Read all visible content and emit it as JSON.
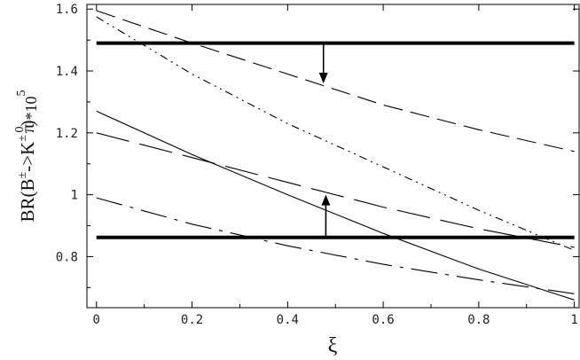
{
  "chart_data": {
    "type": "line",
    "xlabel": "ξ",
    "ylabel": {
      "base": "BR(B",
      "pm1": "±",
      "arrow": "->K",
      "pm2": "±",
      "pi": "π",
      "zero": "0",
      "tail": ")",
      "times": "*10",
      "exp": "5"
    },
    "xlim": [
      -0.02,
      1.01
    ],
    "ylim": [
      0.635,
      1.615
    ],
    "xticks": [
      0,
      0.2,
      0.4,
      0.6,
      0.8,
      1
    ],
    "xtick_labels": [
      "0",
      "0.2",
      "0.4",
      "0.6",
      "0.8",
      "1"
    ],
    "yticks": [
      0.8,
      1.0,
      1.2,
      1.4,
      1.6
    ],
    "ytick_labels": [
      "0.8",
      "1",
      "1.2",
      "1.4",
      "1.6"
    ],
    "grid": false,
    "bounds": [
      {
        "value": 1.49,
        "arrow": {
          "x": 0.475,
          "from": 1.49,
          "to": 1.36
        }
      },
      {
        "value": 0.862,
        "arrow": {
          "x": 0.48,
          "from": 0.862,
          "to": 1.0
        }
      }
    ],
    "series": [
      {
        "style": "solid",
        "x": [
          0,
          0.2,
          0.4,
          0.6,
          0.8,
          1.0
        ],
        "y": [
          1.27,
          1.13,
          1.0,
          0.875,
          0.76,
          0.66
        ]
      },
      {
        "style": "dash-medium",
        "x": [
          0,
          0.2,
          0.4,
          0.6,
          0.8,
          1.0
        ],
        "y": [
          1.595,
          1.49,
          1.39,
          1.29,
          1.21,
          1.14
        ]
      },
      {
        "style": "dash-dot-dot",
        "x": [
          0,
          0.2,
          0.4,
          0.6,
          0.8,
          1.0
        ],
        "y": [
          1.575,
          1.39,
          1.23,
          1.09,
          0.95,
          0.82
        ]
      },
      {
        "style": "dash-long",
        "x": [
          0,
          0.2,
          0.4,
          0.6,
          0.8,
          1.0
        ],
        "y": [
          1.2,
          1.12,
          1.04,
          0.96,
          0.89,
          0.83
        ]
      },
      {
        "style": "dash-dot",
        "x": [
          0,
          0.2,
          0.4,
          0.6,
          0.8,
          1.0
        ],
        "y": [
          0.99,
          0.905,
          0.835,
          0.775,
          0.725,
          0.68
        ]
      }
    ]
  }
}
